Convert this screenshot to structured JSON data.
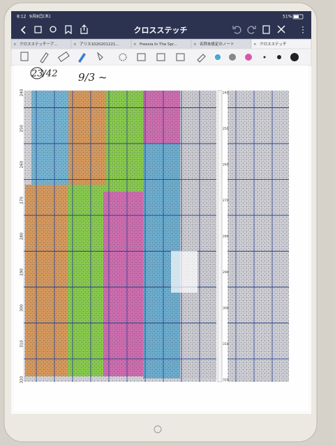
{
  "status": {
    "time": "8:12",
    "date": "9月8日(木)",
    "battery": "51%"
  },
  "title": "クロスステッチ",
  "tabs": [
    "クロスステッチーア...",
    "アリス1020201221...",
    "Freesia In The Spr...",
    "名称未設定のノート",
    "クロスステッチ"
  ],
  "handwriting": {
    "page": "23/42",
    "date": "9/3 ~"
  },
  "rows_left": [
    "240",
    "250",
    "260",
    "270",
    "280",
    "290",
    "300",
    "310",
    "320"
  ],
  "rows_right": [
    "240",
    "250",
    "260",
    "270",
    "280",
    "290",
    "300",
    "310",
    "320"
  ]
}
